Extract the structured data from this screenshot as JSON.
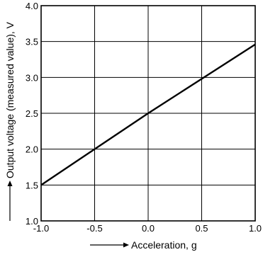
{
  "chart_data": {
    "type": "line",
    "title": "",
    "xlabel": "Acceleration, g",
    "ylabel": "Output voltage (measured value), V",
    "xlim": [
      -1.0,
      1.0
    ],
    "ylim": [
      1.0,
      4.0
    ],
    "x_ticks": [
      -1.0,
      -0.5,
      0.0,
      0.5,
      1.0
    ],
    "x_tick_labels": [
      "-1.0",
      "-0.5",
      "0.0",
      "0.5",
      "1.0"
    ],
    "y_ticks": [
      1.0,
      1.5,
      2.0,
      2.5,
      3.0,
      3.5,
      4.0
    ],
    "y_tick_labels": [
      "1.0",
      "1.5",
      "2.0",
      "2.5",
      "3.0",
      "3.5",
      "4.0"
    ],
    "grid": true,
    "legend": "none",
    "series": [
      {
        "x": [
          -1.0,
          -0.5,
          0.0,
          0.5,
          1.0
        ],
        "y": [
          1.5,
          2.0,
          2.5,
          2.98,
          3.46
        ],
        "color": "#000000"
      }
    ]
  }
}
